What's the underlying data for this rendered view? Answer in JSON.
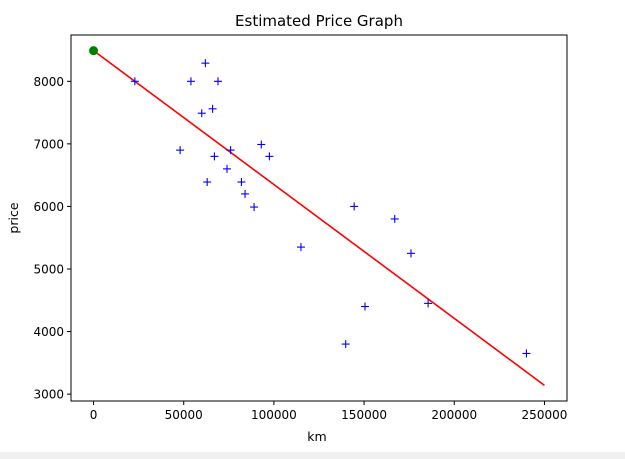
{
  "chart_data": {
    "type": "scatter",
    "title": "Estimated Price Graph",
    "xlabel": "km",
    "ylabel": "price",
    "xlim": [
      -12500,
      262500
    ],
    "ylim": [
      2890,
      8740
    ],
    "grid": false,
    "x_ticks": [
      0,
      50000,
      100000,
      150000,
      200000,
      250000
    ],
    "x_tick_labels": [
      "0",
      "50000",
      "100000",
      "150000",
      "200000",
      "250000"
    ],
    "y_ticks": [
      3000,
      4000,
      5000,
      6000,
      7000,
      8000
    ],
    "y_tick_labels": [
      "3000",
      "4000",
      "5000",
      "6000",
      "7000",
      "8000"
    ],
    "series": [
      {
        "marker": "+",
        "color": "#0000ff",
        "points": [
          {
            "x": 22900,
            "y": 8000
          },
          {
            "x": 54000,
            "y": 8000
          },
          {
            "x": 62000,
            "y": 8290
          },
          {
            "x": 69000,
            "y": 8000
          },
          {
            "x": 66000,
            "y": 7560
          },
          {
            "x": 60000,
            "y": 7490
          },
          {
            "x": 48000,
            "y": 6900
          },
          {
            "x": 67000,
            "y": 6800
          },
          {
            "x": 76000,
            "y": 6900
          },
          {
            "x": 93000,
            "y": 6990
          },
          {
            "x": 97500,
            "y": 6800
          },
          {
            "x": 74000,
            "y": 6600
          },
          {
            "x": 63000,
            "y": 6390
          },
          {
            "x": 82000,
            "y": 6390
          },
          {
            "x": 84000,
            "y": 6200
          },
          {
            "x": 89000,
            "y": 5990
          },
          {
            "x": 144500,
            "y": 6000
          },
          {
            "x": 115000,
            "y": 5350
          },
          {
            "x": 167000,
            "y": 5800
          },
          {
            "x": 176000,
            "y": 5250
          },
          {
            "x": 150500,
            "y": 4400
          },
          {
            "x": 185500,
            "y": 4450
          },
          {
            "x": 139800,
            "y": 3800
          },
          {
            "x": 240000,
            "y": 3650
          }
        ]
      },
      {
        "marker": "line",
        "color": "#ff0000",
        "points": [
          {
            "x": 0,
            "y": 8490
          },
          {
            "x": 250000,
            "y": 3140
          }
        ]
      },
      {
        "marker": "dot",
        "color": "#008000",
        "points": [
          {
            "x": 0,
            "y": 8490
          }
        ]
      }
    ]
  }
}
